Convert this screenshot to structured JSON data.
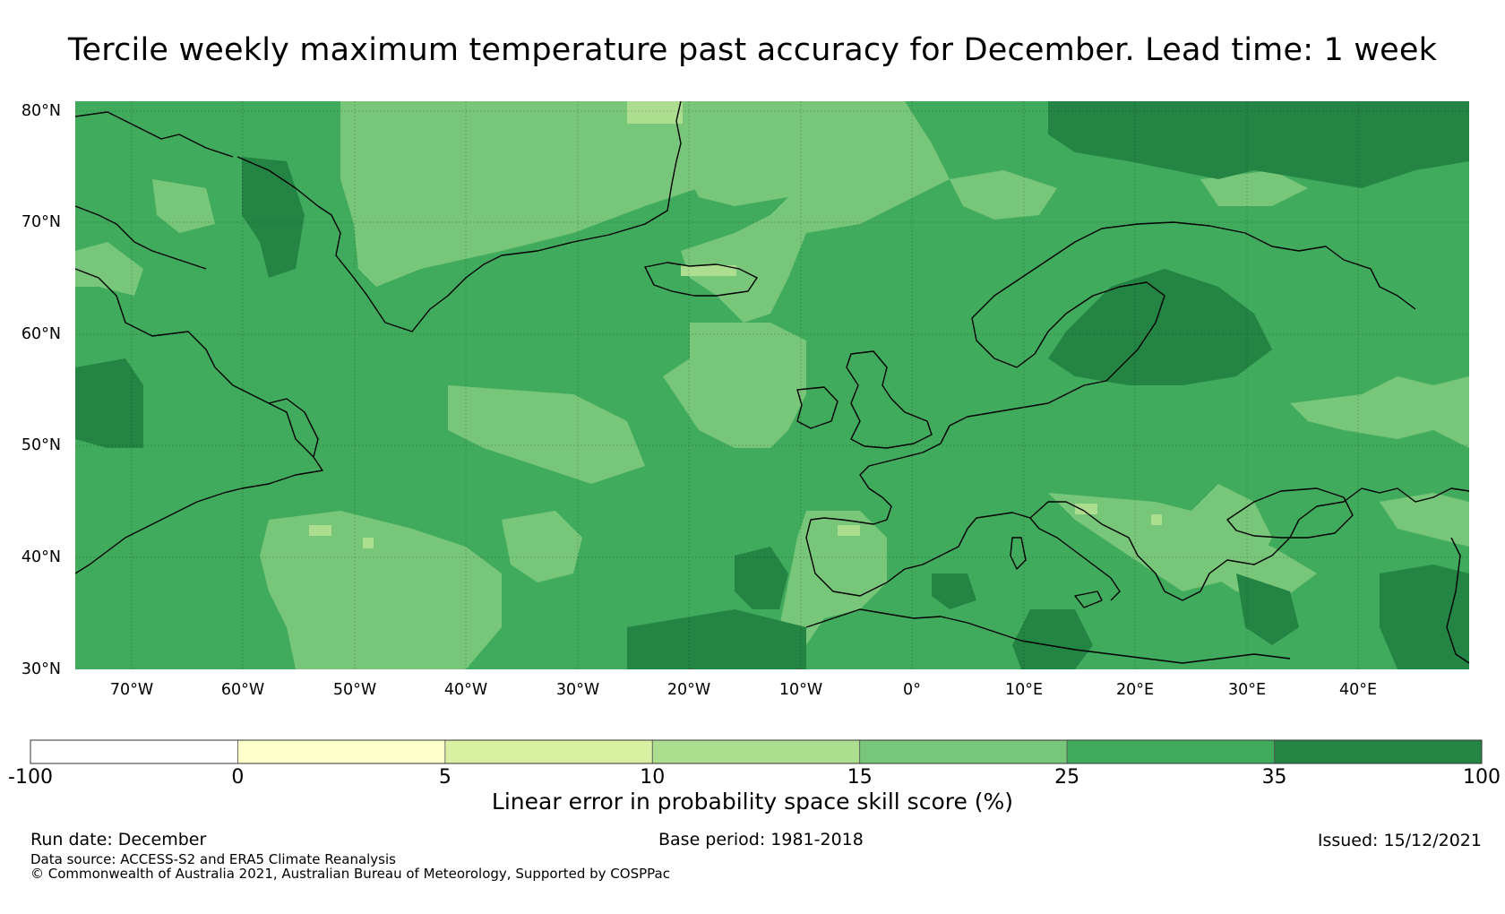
{
  "title": "Tercile weekly maximum temperature past accuracy for December. Lead time: 1 week",
  "map": {
    "region": "North Atlantic and Europe",
    "lat_range": [
      30,
      80
    ],
    "lon_range": [
      -75,
      50
    ],
    "lat_labels": [
      "30°N",
      "40°N",
      "50°N",
      "60°N",
      "70°N",
      "80°N"
    ],
    "lon_labels": [
      "70°W",
      "60°W",
      "50°W",
      "40°W",
      "30°W",
      "20°W",
      "10°W",
      "0°",
      "10°E",
      "20°E",
      "30°E",
      "40°E"
    ]
  },
  "colorbar": {
    "bounds": [
      "-100",
      "0",
      "5",
      "10",
      "15",
      "25",
      "35",
      "100"
    ],
    "colors": [
      "#ffffff",
      "#ffffcc",
      "#d9f0a3",
      "#addd8e",
      "#78c679",
      "#41ab5d",
      "#238443"
    ],
    "label": "Linear error in probability space skill score (%)"
  },
  "footer": {
    "run_date": "Run date: December",
    "base_period": "Base period: 1981-2018",
    "issued": "Issued: 15/12/2021",
    "data_source": "Data source: ACCESS-S2 and ERA5 Climate Reanalysis",
    "copyright": "© Commonwealth of Australia 2021, Australian Bureau of Meteorology, Supported by COSPPac"
  }
}
